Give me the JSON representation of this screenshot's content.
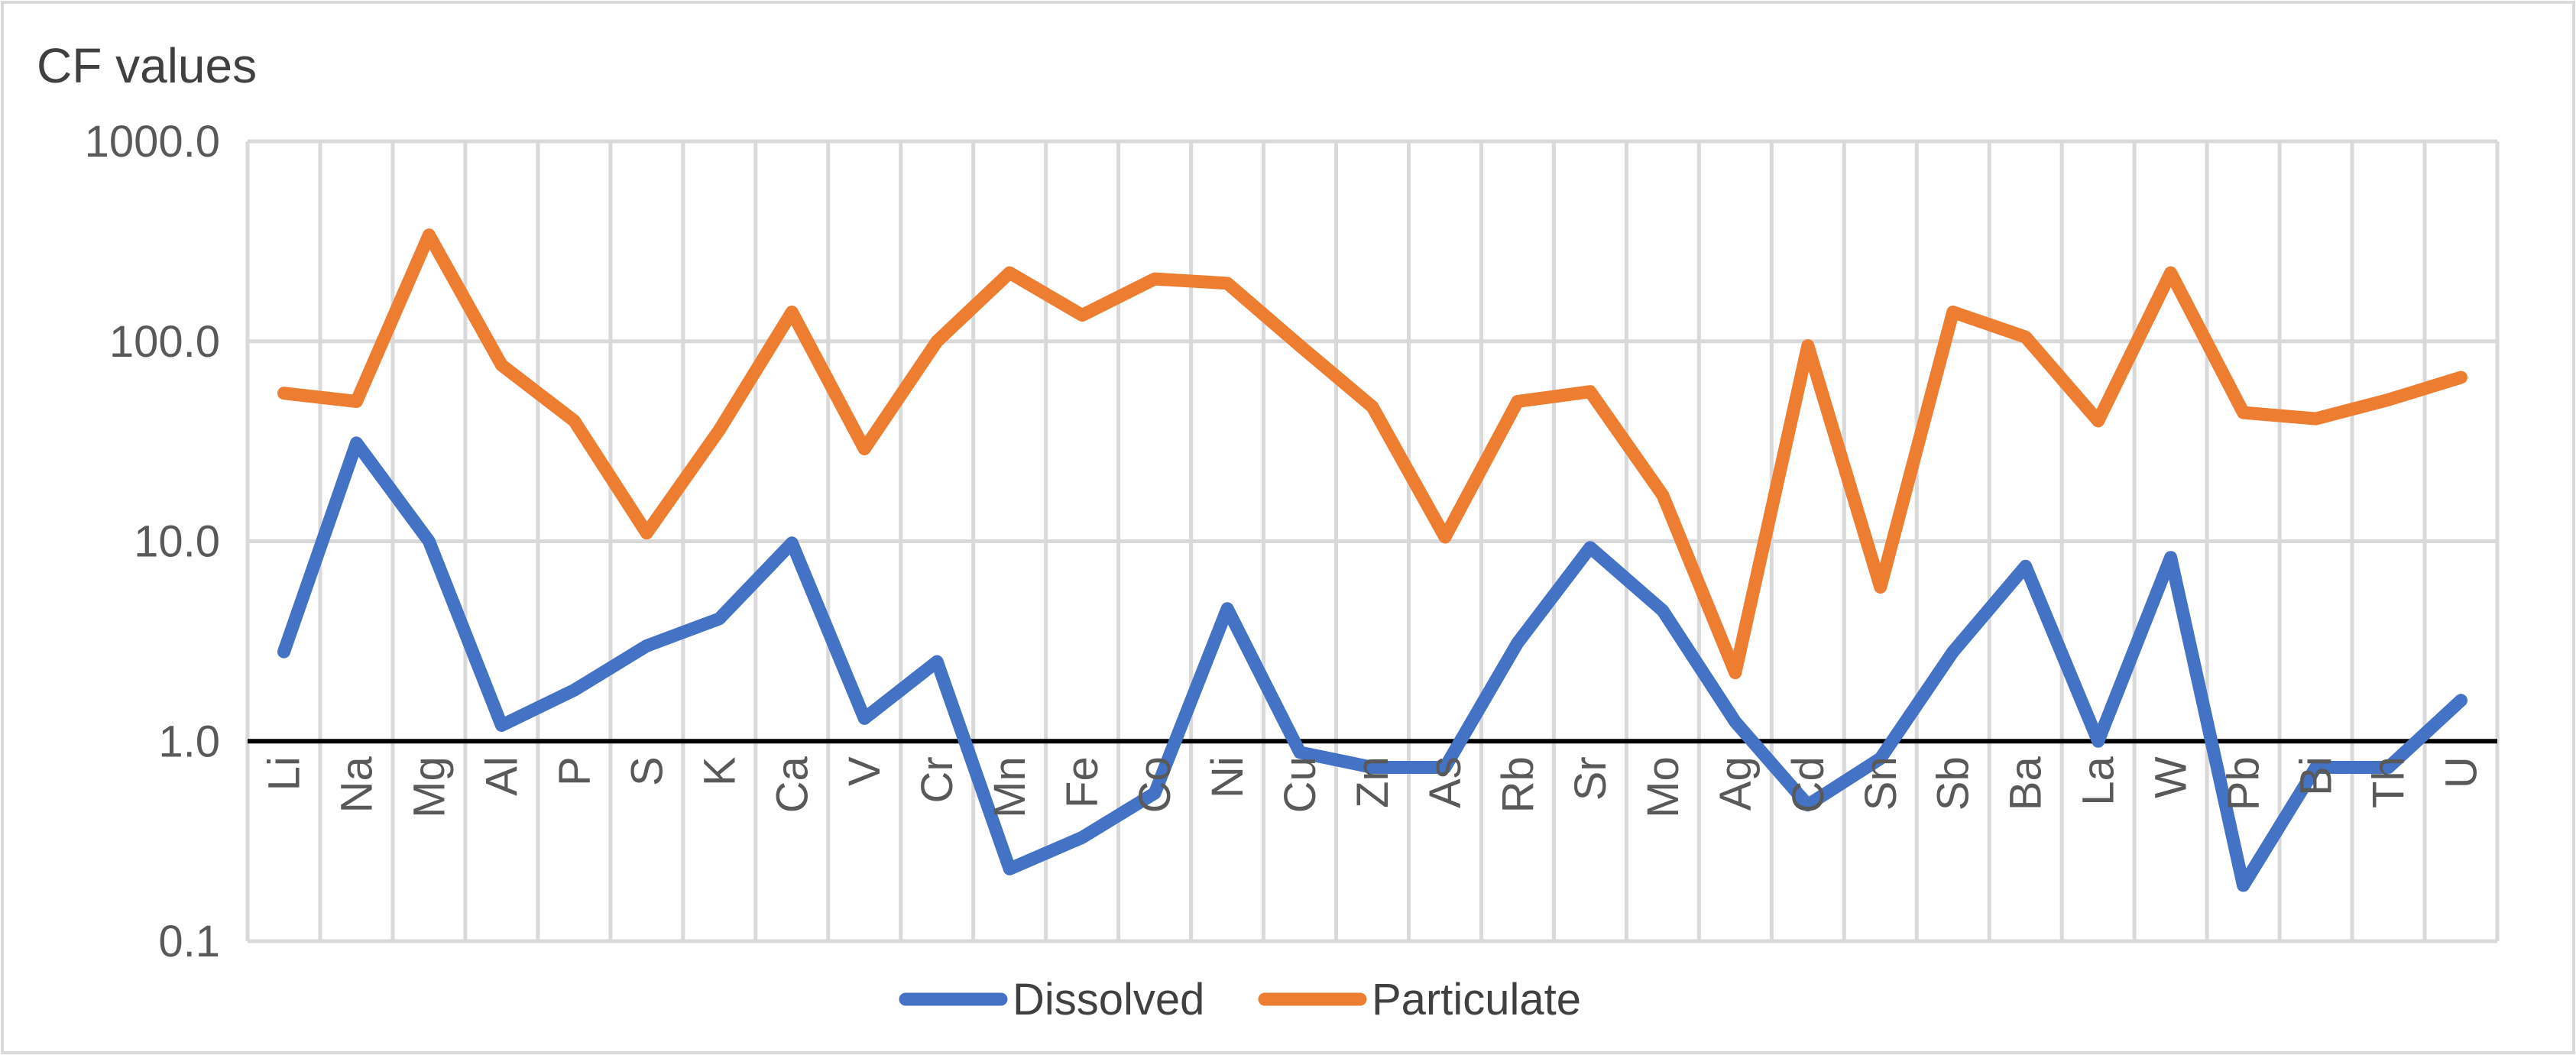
{
  "chart_data": {
    "type": "line",
    "ylabel": "CF values",
    "yscale": "log",
    "ylim": [
      0.1,
      1000
    ],
    "yticks": [
      "0.1",
      "1.0",
      "10.0",
      "100.0",
      "1000.0"
    ],
    "reference_line": 1.0,
    "grid": true,
    "legend_position": "bottom",
    "categories": [
      "Li",
      "Na",
      "Mg",
      "Al",
      "P",
      "S",
      "K",
      "Ca",
      "V",
      "Cr",
      "Mn",
      "Fe",
      "Co",
      "Ni",
      "Cu",
      "Zn",
      "As",
      "Rb",
      "Sr",
      "Mo",
      "Ag",
      "Cd",
      "Sn",
      "Sb",
      "Ba",
      "La",
      "W",
      "Pb",
      "Bi",
      "Th",
      "U"
    ],
    "series": [
      {
        "name": "Dissolved",
        "color": "#4472C4",
        "values": [
          2.8,
          31,
          10,
          1.2,
          1.8,
          3.0,
          4.1,
          9.8,
          1.3,
          2.5,
          0.23,
          0.33,
          0.55,
          4.6,
          0.88,
          0.74,
          0.74,
          3.1,
          9.3,
          4.5,
          1.25,
          0.48,
          0.82,
          2.8,
          7.5,
          1.0,
          8.3,
          0.19,
          0.74,
          0.74,
          1.6
        ]
      },
      {
        "name": "Particulate",
        "color": "#ED7D31",
        "values": [
          55,
          50,
          340,
          76,
          40,
          11,
          36,
          140,
          29,
          100,
          220,
          135,
          205,
          195,
          95,
          47,
          10.5,
          50,
          56,
          17,
          2.2,
          95,
          5.9,
          140,
          105,
          40,
          220,
          44,
          41,
          51,
          66
        ]
      }
    ]
  }
}
